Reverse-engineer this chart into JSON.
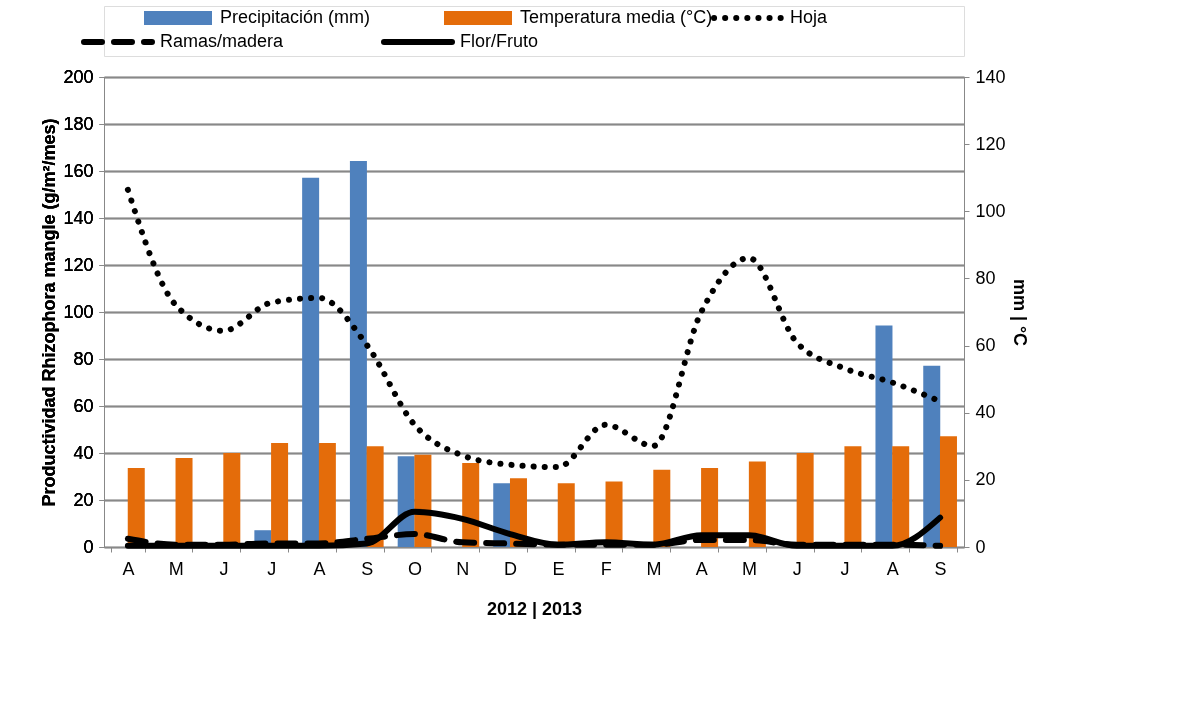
{
  "chart_data": {
    "type": "bar",
    "categories": [
      "A",
      "M",
      "J",
      "J",
      "A",
      "S",
      "O",
      "N",
      "D",
      "E",
      "F",
      "M",
      "A",
      "M",
      "J",
      "J",
      "A",
      "S"
    ],
    "xlabel": "2012 | 2013",
    "ylabel": "Productividad Rhizophora mangle (g/m²/mes)",
    "y2label": "mm | °C",
    "ylim": [
      0,
      200
    ],
    "yticks": [
      0,
      20,
      40,
      60,
      80,
      100,
      120,
      140,
      160,
      180,
      200
    ],
    "y2lim": [
      0,
      140
    ],
    "y2ticks": [
      0,
      20,
      40,
      60,
      80,
      100,
      120,
      140
    ],
    "grid": "y",
    "legend": "top",
    "marker": "none",
    "series": [
      {
        "name": "Precipitación (mm)",
        "axis": "y2",
        "color": "#4f81bd",
        "values": [
          null,
          null,
          null,
          5,
          110,
          115,
          27,
          null,
          19,
          null,
          null,
          null,
          null,
          null,
          null,
          null,
          66,
          54
        ]
      },
      {
        "name": "Temperatura media (°C)",
        "axis": "y2",
        "color": "#e46c0a",
        "values": [
          23.5,
          26.5,
          28,
          31,
          31,
          30,
          27.5,
          25,
          20.5,
          19,
          19.5,
          23,
          23.5,
          25.5,
          28,
          30,
          30,
          33
        ]
      },
      {
        "name": "Hoja",
        "type": "line",
        "line_style": "dotted",
        "color": "#000000",
        "values": [
          152,
          103,
          92,
          104,
          106,
          86,
          52,
          39,
          35,
          34,
          52,
          43,
          100,
          123,
          87,
          76,
          70,
          62
        ]
      },
      {
        "name": "Ramas/madera",
        "type": "line",
        "line_style": "dashed",
        "color": "#000000",
        "values": [
          3.5,
          1,
          1,
          1.5,
          1.5,
          3.5,
          5.5,
          2,
          1.5,
          1,
          1,
          1,
          3,
          3,
          1,
          1,
          1,
          0.5
        ]
      },
      {
        "name": "Flor/Fruto",
        "type": "line",
        "line_style": "solid",
        "color": "#000000",
        "values": [
          0.5,
          0.5,
          0.5,
          0.5,
          0.5,
          1.5,
          15,
          12,
          5.5,
          1,
          2,
          1,
          5,
          5,
          0.5,
          0.5,
          0.5,
          12.5
        ]
      }
    ]
  }
}
